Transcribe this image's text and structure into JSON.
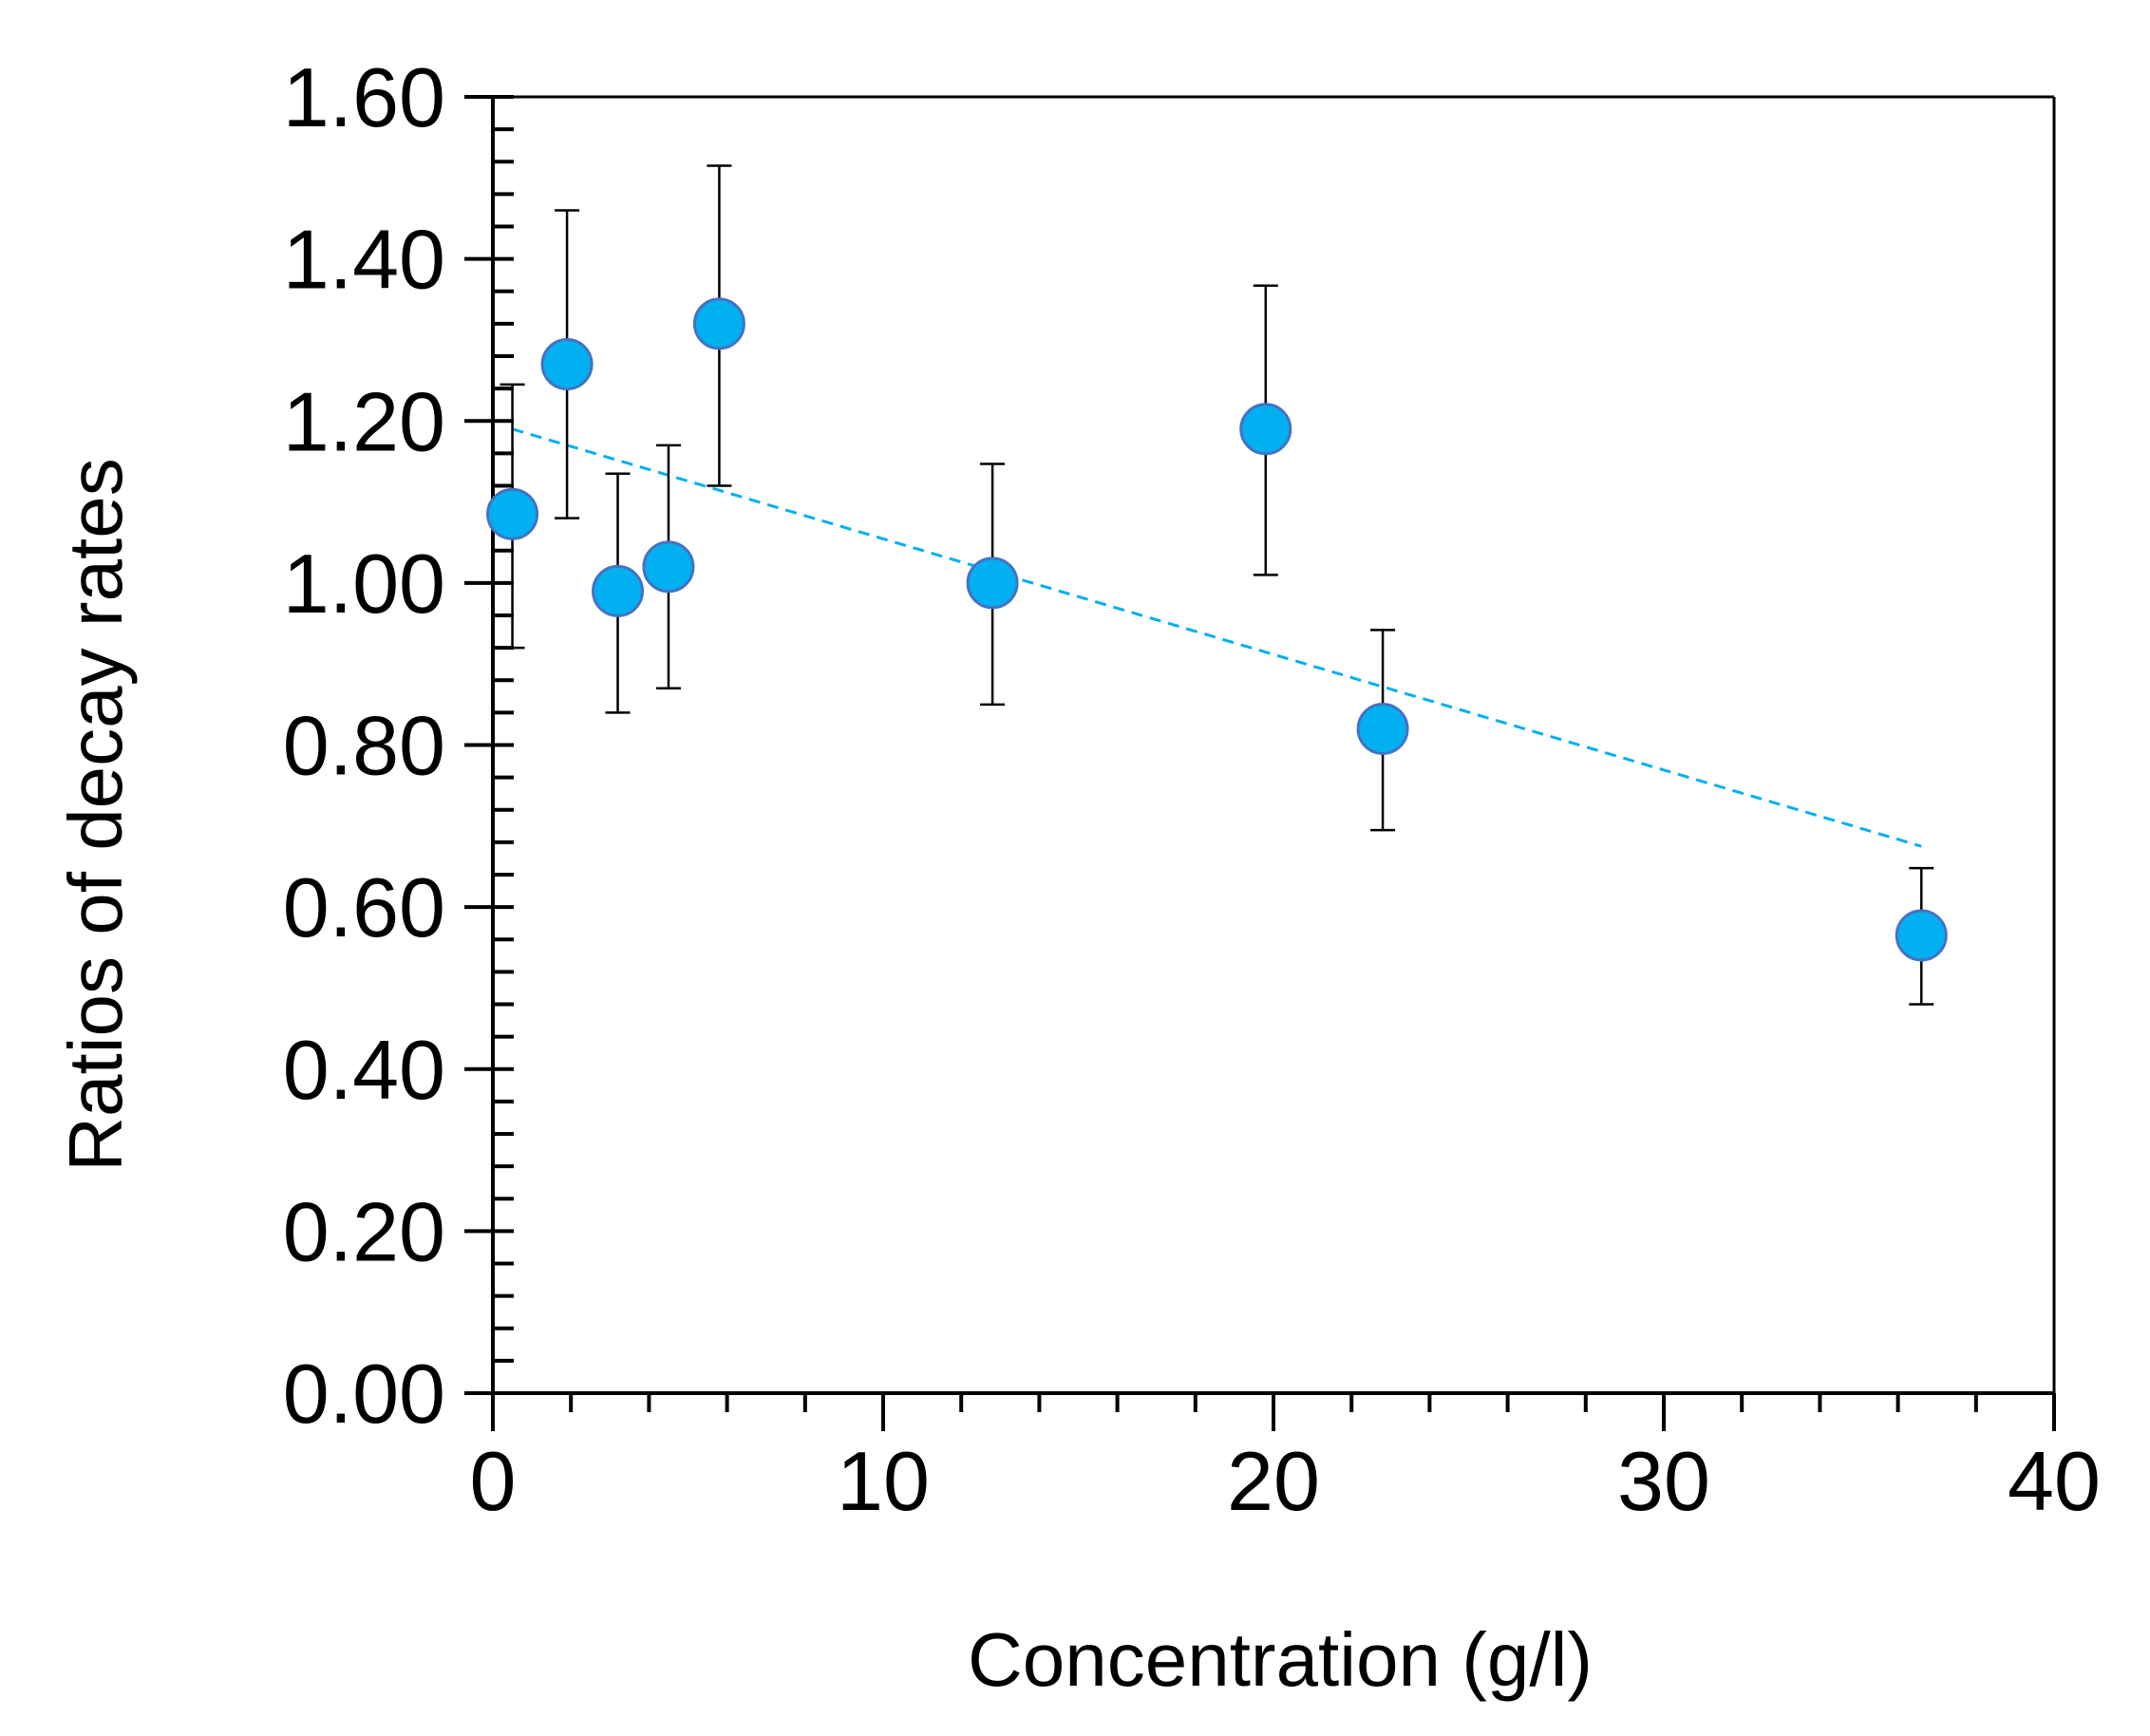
{
  "chart_data": {
    "type": "scatter",
    "title": "",
    "xlabel": "Concentration (g/l)",
    "ylabel": "Ratios of decay rates",
    "xlim": [
      0,
      40
    ],
    "ylim": [
      0,
      1.6
    ],
    "xticks": [
      0,
      10,
      20,
      30,
      40
    ],
    "xtick_labels": [
      "0",
      "10",
      "20",
      "30",
      "40"
    ],
    "yticks": [
      0,
      0.2,
      0.4,
      0.6,
      0.8,
      1.0,
      1.2,
      1.4,
      1.6
    ],
    "ytick_labels": [
      "0.00",
      "0.20",
      "0.40",
      "0.60",
      "0.80",
      "1.00",
      "1.20",
      "1.40",
      "1.60"
    ],
    "x_minor_step": 2,
    "y_minor_step": 0.04,
    "grid": false,
    "series": [
      {
        "name": "Ratios of decay rates",
        "color": "#00b0f0",
        "x": [
          0.5,
          1.9,
          3.2,
          4.5,
          5.8,
          12.8,
          19.8,
          22.8,
          36.6
        ],
        "y": [
          1.085,
          1.27,
          0.99,
          1.02,
          1.32,
          1.0,
          1.19,
          0.82,
          0.565
        ],
        "err_low": [
          0.165,
          0.19,
          0.15,
          0.15,
          0.2,
          0.15,
          0.18,
          0.125,
          0.085
        ],
        "err_high": [
          0.16,
          0.19,
          0.145,
          0.15,
          0.195,
          0.147,
          0.177,
          0.122,
          0.083
        ]
      }
    ],
    "trendline": {
      "type": "linear",
      "color": "#00b0f0",
      "style": "dashed",
      "x": [
        0.5,
        36.6
      ],
      "y": [
        1.19,
        0.675
      ]
    }
  }
}
